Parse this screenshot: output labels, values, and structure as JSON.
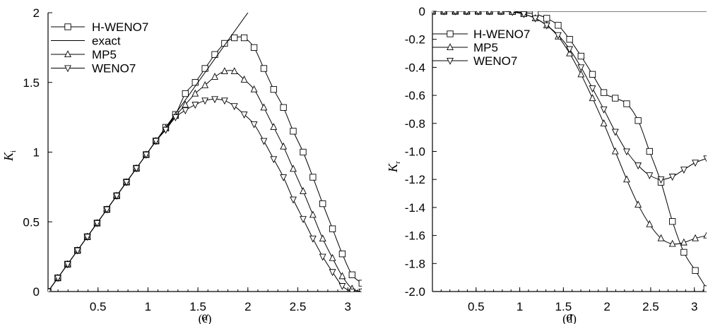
{
  "chart_data": [
    {
      "type": "line",
      "panel_label": "(c)",
      "xlabel": "α",
      "ylabel": "K",
      "ylabel_sub": "i",
      "xlim": [
        0,
        3.14
      ],
      "ylim": [
        0,
        2
      ],
      "x_ticks": [
        "0.5",
        "1",
        "1.5",
        "2",
        "2.5",
        "3"
      ],
      "y_ticks": [
        "0",
        "0.5",
        "1",
        "1.5",
        "2"
      ],
      "legend_position": "top-left",
      "series": [
        {
          "name": "H-WENO7",
          "marker": "square",
          "x": [
            0,
            0.098,
            0.196,
            0.295,
            0.393,
            0.491,
            0.589,
            0.687,
            0.785,
            0.884,
            0.982,
            1.08,
            1.178,
            1.276,
            1.374,
            1.473,
            1.571,
            1.669,
            1.767,
            1.865,
            1.963,
            2.062,
            2.16,
            2.258,
            2.356,
            2.454,
            2.553,
            2.651,
            2.749,
            2.847,
            2.945,
            3.043,
            3.142
          ],
          "y": [
            0,
            0.098,
            0.196,
            0.295,
            0.393,
            0.491,
            0.589,
            0.687,
            0.785,
            0.884,
            0.982,
            1.08,
            1.178,
            1.27,
            1.42,
            1.5,
            1.6,
            1.7,
            1.78,
            1.82,
            1.82,
            1.75,
            1.6,
            1.45,
            1.32,
            1.15,
            1.0,
            0.82,
            0.63,
            0.45,
            0.27,
            0.12,
            0.06
          ]
        },
        {
          "name": "exact",
          "marker": "none",
          "x": [
            0,
            2.0
          ],
          "y": [
            0,
            2.0
          ]
        },
        {
          "name": "MP5",
          "marker": "triangle-up",
          "x": [
            0,
            0.098,
            0.196,
            0.295,
            0.393,
            0.491,
            0.589,
            0.687,
            0.785,
            0.884,
            0.982,
            1.08,
            1.178,
            1.276,
            1.374,
            1.473,
            1.571,
            1.669,
            1.767,
            1.865,
            1.963,
            2.062,
            2.16,
            2.258,
            2.356,
            2.454,
            2.553,
            2.651,
            2.749,
            2.847,
            2.945,
            3.043,
            3.142
          ],
          "y": [
            0,
            0.098,
            0.196,
            0.295,
            0.393,
            0.491,
            0.589,
            0.687,
            0.785,
            0.884,
            0.982,
            1.08,
            1.17,
            1.26,
            1.34,
            1.42,
            1.48,
            1.54,
            1.58,
            1.58,
            1.52,
            1.45,
            1.32,
            1.18,
            1.04,
            0.88,
            0.72,
            0.55,
            0.38,
            0.24,
            0.11,
            0.02,
            0.0
          ]
        },
        {
          "name": "WENO7",
          "marker": "triangle-down",
          "x": [
            0,
            0.098,
            0.196,
            0.295,
            0.393,
            0.491,
            0.589,
            0.687,
            0.785,
            0.884,
            0.982,
            1.08,
            1.178,
            1.276,
            1.374,
            1.473,
            1.571,
            1.669,
            1.767,
            1.865,
            1.963,
            2.062,
            2.16,
            2.258,
            2.356,
            2.454,
            2.553,
            2.651,
            2.749,
            2.847,
            2.945,
            3.043,
            3.142
          ],
          "y": [
            0,
            0.098,
            0.196,
            0.295,
            0.393,
            0.491,
            0.589,
            0.687,
            0.785,
            0.884,
            0.982,
            1.08,
            1.16,
            1.25,
            1.3,
            1.34,
            1.37,
            1.38,
            1.37,
            1.33,
            1.27,
            1.2,
            1.08,
            0.95,
            0.82,
            0.66,
            0.52,
            0.38,
            0.25,
            0.14,
            0.04,
            0.0,
            0.0
          ]
        }
      ]
    },
    {
      "type": "line",
      "panel_label": "(d)",
      "xlabel": "α",
      "ylabel": "K",
      "ylabel_sub": "r",
      "xlim": [
        0,
        3.14
      ],
      "ylim": [
        -2.0,
        0
      ],
      "x_ticks": [
        "0.5",
        "1",
        "1.5",
        "2",
        "2.5",
        "3"
      ],
      "y_ticks": [
        "0",
        "-0.2",
        "-0.4",
        "-0.6",
        "-0.8",
        "-1.0",
        "-1.2",
        "-1.4",
        "-1.6",
        "-1.8",
        "-2.0"
      ],
      "legend_position": "top-left",
      "series": [
        {
          "name": "H-WENO7",
          "marker": "square",
          "x": [
            0,
            0.131,
            0.262,
            0.393,
            0.524,
            0.654,
            0.785,
            0.916,
            1.047,
            1.178,
            1.309,
            1.44,
            1.571,
            1.702,
            1.833,
            1.963,
            2.094,
            2.225,
            2.356,
            2.487,
            2.618,
            2.749,
            2.88,
            3.011,
            3.142
          ],
          "y": [
            0,
            0,
            0,
            0,
            0,
            0,
            0,
            -0.002,
            -0.01,
            -0.02,
            -0.05,
            -0.1,
            -0.2,
            -0.32,
            -0.45,
            -0.58,
            -0.62,
            -0.66,
            -0.78,
            -1.0,
            -1.22,
            -1.5,
            -1.72,
            -1.85,
            -1.98
          ]
        },
        {
          "name": "MP5",
          "marker": "triangle-up",
          "x": [
            0,
            0.131,
            0.262,
            0.393,
            0.524,
            0.654,
            0.785,
            0.916,
            1.047,
            1.178,
            1.309,
            1.44,
            1.571,
            1.702,
            1.833,
            1.963,
            2.094,
            2.225,
            2.356,
            2.487,
            2.618,
            2.749,
            2.88,
            3.011,
            3.142
          ],
          "y": [
            0,
            0,
            0,
            0,
            0,
            0,
            0,
            -0.005,
            -0.02,
            -0.05,
            -0.1,
            -0.18,
            -0.3,
            -0.45,
            -0.62,
            -0.8,
            -1.0,
            -1.2,
            -1.38,
            -1.52,
            -1.62,
            -1.66,
            -1.65,
            -1.62,
            -1.6
          ]
        },
        {
          "name": "WENO7",
          "marker": "triangle-down",
          "x": [
            0,
            0.131,
            0.262,
            0.393,
            0.524,
            0.654,
            0.785,
            0.916,
            1.047,
            1.178,
            1.309,
            1.44,
            1.571,
            1.702,
            1.833,
            1.963,
            2.094,
            2.225,
            2.356,
            2.487,
            2.618,
            2.749,
            2.88,
            3.011,
            3.142
          ],
          "y": [
            0,
            0,
            0,
            0,
            0,
            0,
            0,
            -0.005,
            -0.02,
            -0.05,
            -0.1,
            -0.17,
            -0.27,
            -0.4,
            -0.55,
            -0.7,
            -0.86,
            -1.0,
            -1.1,
            -1.17,
            -1.2,
            -1.18,
            -1.13,
            -1.08,
            -1.05
          ]
        }
      ],
      "reference_line": {
        "x": [
          0,
          3.142
        ],
        "y": [
          0,
          0
        ]
      }
    }
  ]
}
